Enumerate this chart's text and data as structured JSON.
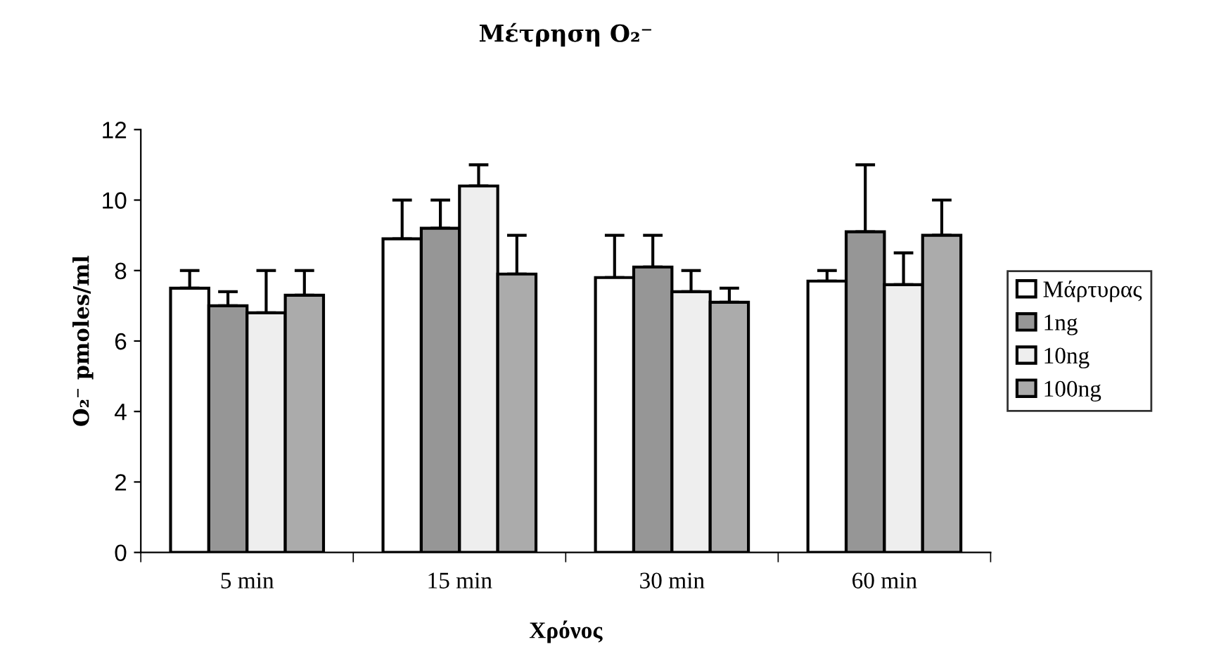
{
  "chart_data": {
    "type": "bar",
    "title": "Μέτρηση O₂⁻",
    "xlabel": "Χρόνος",
    "ylabel": "O₂⁻ pmoles/ml",
    "categories": [
      "5 min",
      "15 min",
      "30 min",
      "60 min"
    ],
    "series": [
      {
        "name": "Μάρτυρας",
        "color": "#ffffff",
        "values": [
          7.5,
          8.9,
          7.8,
          7.7
        ],
        "errors": [
          [
            7.5,
            8.0
          ],
          [
            8.9,
            10.0
          ],
          [
            7.8,
            9.0
          ],
          [
            7.7,
            8.0
          ]
        ]
      },
      {
        "name": "1ng",
        "color": "#969696",
        "values": [
          7.0,
          9.2,
          8.1,
          9.1
        ],
        "errors": [
          [
            7.0,
            7.4
          ],
          [
            9.2,
            10.0
          ],
          [
            8.1,
            9.0
          ],
          [
            9.1,
            11.0
          ]
        ]
      },
      {
        "name": "10ng",
        "color": "#eeeeee",
        "values": [
          6.8,
          10.4,
          7.4,
          7.6
        ],
        "errors": [
          [
            6.8,
            8.0
          ],
          [
            10.4,
            11.0
          ],
          [
            7.4,
            8.0
          ],
          [
            7.6,
            8.5
          ]
        ]
      },
      {
        "name": "100ng",
        "color": "#ababab",
        "values": [
          7.3,
          7.9,
          7.1,
          9.0
        ],
        "errors": [
          [
            7.3,
            8.0
          ],
          [
            7.9,
            9.0
          ],
          [
            7.1,
            7.5
          ],
          [
            9.0,
            10.0
          ]
        ]
      }
    ],
    "ylim": [
      0,
      12
    ],
    "yticks": [
      0,
      2,
      4,
      6,
      8,
      10,
      12
    ],
    "grid": false,
    "legend": "right"
  }
}
